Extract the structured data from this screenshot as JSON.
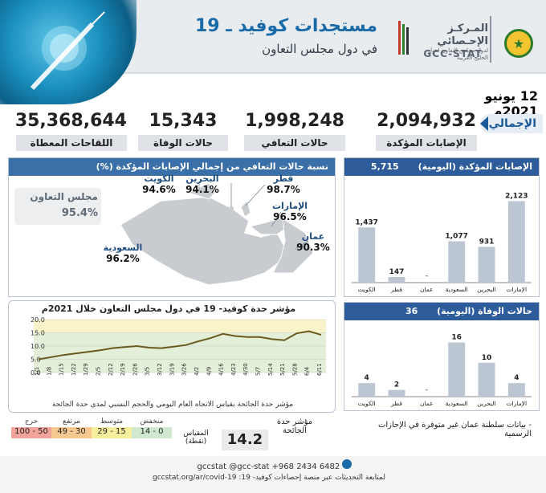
{
  "header": {
    "title": "مستجدات كوفيد ـ 19",
    "subtitle": "في دول مجلس التعاون",
    "org_name_ar": "المـركـز الإحـصائي",
    "org_subline": "لدول مجلس التعاون لدول الخليج العربية",
    "org_short": "GCC-STAT"
  },
  "date": "12 يونيو 2021م",
  "total_label": "الإجمالي",
  "kpis": [
    {
      "value": "2,094,932",
      "label": "الإصابات المؤكدة"
    },
    {
      "value": "1,998,248",
      "label": "حالات التعافي"
    },
    {
      "value": "15,343",
      "label": "حالات الوفاة"
    },
    {
      "value": "35,368,644",
      "label": "اللقاحات المعطاة"
    }
  ],
  "recovery_panel": {
    "title": "نسبة حالات التعافي من إجمالي الإصابات المؤكدة (%)",
    "gcc_label": "مجلس التعاون",
    "gcc_value": "95.4%",
    "countries": [
      {
        "name": "الكويت",
        "value": "94.6%"
      },
      {
        "name": "البحرين",
        "value": "94.1%"
      },
      {
        "name": "قطر",
        "value": "98.7%"
      },
      {
        "name": "الإمارات",
        "value": "96.5%"
      },
      {
        "name": "عمان",
        "value": "90.3%"
      },
      {
        "name": "السعودية",
        "value": "96.2%"
      }
    ]
  },
  "daily_cases_panel": {
    "title": "الإصابات المؤكدة (اليومية)",
    "total": "5,715"
  },
  "daily_deaths_panel": {
    "title": "حالات الوفاة (اليومية)",
    "total": "36"
  },
  "severity_panel": {
    "title": "مؤشر حدة كوفيد- 19 في دول مجلس التعاون خلال 2021م",
    "footnote": "مؤشر حدة الجائحة بقياس الاتجاه العام اليومي والحجم النسبي لمدى حدة الجائحة",
    "index_label": "مؤشر حدة الجائحة",
    "index_value": "14.2",
    "scale_label": "المقياس (نقطة)",
    "scale": [
      {
        "range": "0 - 14",
        "name": "منخفض",
        "color": "#cfe8cf"
      },
      {
        "range": "15 - 29",
        "name": "متوسط",
        "color": "#f7ef9e"
      },
      {
        "range": "30 - 49",
        "name": "مرتفع",
        "color": "#f7c88f"
      },
      {
        "range": "50 - 100",
        "name": "حرج",
        "color": "#f2a39a"
      }
    ]
  },
  "oman_note": "بيانات سلطنة عمان غير متوفرة في الإجازات الرسمية",
  "footer": {
    "social": "gccstat @gcc-stat +968 2434 6482",
    "link": "لمتابعة التحديثات عبر منصة إحصاءات كوفيد- 19: gccstat.org/ar/covid-19"
  },
  "chart_data": [
    {
      "type": "bar",
      "title": "الإصابات المؤكدة (اليومية)",
      "categories": [
        "الإمارات",
        "البحرين",
        "السعودية",
        "عمان",
        "قطر",
        "الكويت"
      ],
      "values": [
        2123,
        931,
        1077,
        null,
        147,
        1437
      ],
      "value_labels": [
        "2,123",
        "931",
        "1,077",
        "-",
        "147",
        "1,437"
      ],
      "ylim": [
        0,
        2300
      ]
    },
    {
      "type": "bar",
      "title": "حالات الوفاة (اليومية)",
      "categories": [
        "الإمارات",
        "البحرين",
        "السعودية",
        "عمان",
        "قطر",
        "الكويت"
      ],
      "values": [
        4,
        10,
        16,
        null,
        2,
        4
      ],
      "value_labels": [
        "4",
        "10",
        "16",
        "-",
        "2",
        "4"
      ],
      "ylim": [
        0,
        18
      ]
    },
    {
      "type": "line",
      "title": "مؤشر حدة كوفيد- 19 في دول مجلس التعاون خلال 2021م",
      "xticks": [
        "1/1",
        "1/8",
        "1/15",
        "1/22",
        "1/29",
        "2/5",
        "2/12",
        "2/19",
        "2/26",
        "3/5",
        "3/12",
        "3/19",
        "3/26",
        "4/2",
        "4/9",
        "4/16",
        "4/23",
        "4/30",
        "5/7",
        "5/14",
        "5/21",
        "5/28",
        "6/4",
        "6/11"
      ],
      "yticks": [
        0.0,
        5.0,
        10.0,
        15.0,
        20.0
      ],
      "ylim": [
        0,
        20
      ],
      "x": [
        "1/1",
        "1/8",
        "1/15",
        "1/22",
        "1/29",
        "2/5",
        "2/12",
        "2/19",
        "2/26",
        "3/5",
        "3/12",
        "3/19",
        "3/26",
        "4/2",
        "4/9",
        "4/16",
        "4/23",
        "4/30",
        "5/7",
        "5/14",
        "5/21",
        "5/28",
        "6/4",
        "6/12"
      ],
      "values": [
        5.0,
        5.8,
        6.6,
        7.2,
        7.8,
        8.4,
        9.2,
        9.6,
        10.0,
        9.4,
        9.2,
        9.8,
        10.4,
        11.8,
        13.0,
        14.6,
        13.8,
        13.4,
        13.4,
        12.6,
        12.2,
        14.8,
        15.6,
        14.2
      ],
      "grid": true
    }
  ]
}
